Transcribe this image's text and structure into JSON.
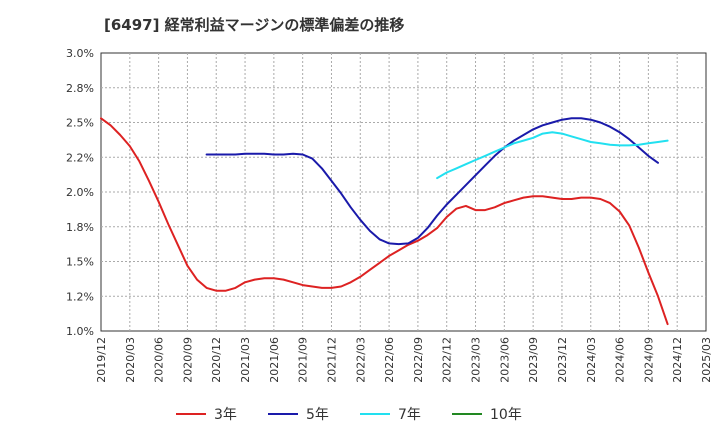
{
  "chart_data": {
    "type": "line",
    "title": "[6497]  経常利益マージンの標準偏差の推移",
    "xlabel": "",
    "ylabel": "",
    "x_ticks": [
      "2019/12",
      "2020/03",
      "2020/06",
      "2020/09",
      "2020/12",
      "2021/03",
      "2021/06",
      "2021/09",
      "2021/12",
      "2022/03",
      "2022/06",
      "2022/09",
      "2022/12",
      "2023/03",
      "2023/06",
      "2023/09",
      "2023/12",
      "2024/03",
      "2024/06",
      "2024/09",
      "2024/12",
      "2025/03"
    ],
    "y_ticks": [
      "3.0%",
      "2.8%",
      "2.5%",
      "2.2%",
      "2.0%",
      "1.8%",
      "1.5%",
      "1.2%",
      "1.0%"
    ],
    "ylim": [
      1.0,
      3.0
    ],
    "grid": true,
    "legend": "bottom",
    "series": [
      {
        "name": "3年",
        "color": "#dd2222",
        "points": [
          [
            "2019/12",
            2.53
          ],
          [
            "2020/01",
            2.48
          ],
          [
            "2020/02",
            2.41
          ],
          [
            "2020/03",
            2.33
          ],
          [
            "2020/04",
            2.22
          ],
          [
            "2020/05",
            2.08
          ],
          [
            "2020/06",
            1.93
          ],
          [
            "2020/07",
            1.77
          ],
          [
            "2020/08",
            1.62
          ],
          [
            "2020/09",
            1.47
          ],
          [
            "2020/10",
            1.37
          ],
          [
            "2020/11",
            1.31
          ],
          [
            "2020/12",
            1.29
          ],
          [
            "2021/01",
            1.29
          ],
          [
            "2021/02",
            1.31
          ],
          [
            "2021/03",
            1.35
          ],
          [
            "2021/04",
            1.37
          ],
          [
            "2021/05",
            1.38
          ],
          [
            "2021/06",
            1.38
          ],
          [
            "2021/07",
            1.37
          ],
          [
            "2021/08",
            1.35
          ],
          [
            "2021/09",
            1.33
          ],
          [
            "2021/10",
            1.32
          ],
          [
            "2021/11",
            1.31
          ],
          [
            "2021/12",
            1.31
          ],
          [
            "2022/01",
            1.32
          ],
          [
            "2022/02",
            1.35
          ],
          [
            "2022/03",
            1.39
          ],
          [
            "2022/04",
            1.44
          ],
          [
            "2022/05",
            1.49
          ],
          [
            "2022/06",
            1.54
          ],
          [
            "2022/07",
            1.58
          ],
          [
            "2022/08",
            1.62
          ],
          [
            "2022/09",
            1.65
          ],
          [
            "2022/10",
            1.69
          ],
          [
            "2022/11",
            1.74
          ],
          [
            "2022/12",
            1.82
          ],
          [
            "2023/01",
            1.88
          ],
          [
            "2023/02",
            1.9
          ],
          [
            "2023/03",
            1.87
          ],
          [
            "2023/04",
            1.87
          ],
          [
            "2023/05",
            1.89
          ],
          [
            "2023/06",
            1.92
          ],
          [
            "2023/07",
            1.94
          ],
          [
            "2023/08",
            1.96
          ],
          [
            "2023/09",
            1.97
          ],
          [
            "2023/10",
            1.97
          ],
          [
            "2023/11",
            1.96
          ],
          [
            "2023/12",
            1.95
          ],
          [
            "2024/01",
            1.95
          ],
          [
            "2024/02",
            1.96
          ],
          [
            "2024/03",
            1.96
          ],
          [
            "2024/04",
            1.95
          ],
          [
            "2024/05",
            1.92
          ],
          [
            "2024/06",
            1.86
          ],
          [
            "2024/07",
            1.76
          ],
          [
            "2024/08",
            1.6
          ],
          [
            "2024/09",
            1.42
          ],
          [
            "2024/10",
            1.25
          ],
          [
            "2024/11",
            1.05
          ]
        ]
      },
      {
        "name": "5年",
        "color": "#1a1aaa",
        "points": [
          [
            "2020/11",
            2.27
          ],
          [
            "2020/12",
            2.27
          ],
          [
            "2021/01",
            2.27
          ],
          [
            "2021/02",
            2.27
          ],
          [
            "2021/03",
            2.275
          ],
          [
            "2021/04",
            2.275
          ],
          [
            "2021/05",
            2.275
          ],
          [
            "2021/06",
            2.27
          ],
          [
            "2021/07",
            2.27
          ],
          [
            "2021/08",
            2.275
          ],
          [
            "2021/09",
            2.27
          ],
          [
            "2021/10",
            2.24
          ],
          [
            "2021/11",
            2.17
          ],
          [
            "2021/12",
            2.08
          ],
          [
            "2022/01",
            1.99
          ],
          [
            "2022/02",
            1.89
          ],
          [
            "2022/03",
            1.8
          ],
          [
            "2022/04",
            1.72
          ],
          [
            "2022/05",
            1.66
          ],
          [
            "2022/06",
            1.63
          ],
          [
            "2022/07",
            1.625
          ],
          [
            "2022/08",
            1.63
          ],
          [
            "2022/09",
            1.67
          ],
          [
            "2022/10",
            1.74
          ],
          [
            "2022/11",
            1.83
          ],
          [
            "2022/12",
            1.91
          ],
          [
            "2023/01",
            1.98
          ],
          [
            "2023/02",
            2.05
          ],
          [
            "2023/03",
            2.12
          ],
          [
            "2023/04",
            2.19
          ],
          [
            "2023/05",
            2.26
          ],
          [
            "2023/06",
            2.32
          ],
          [
            "2023/07",
            2.37
          ],
          [
            "2023/08",
            2.41
          ],
          [
            "2023/09",
            2.45
          ],
          [
            "2023/10",
            2.48
          ],
          [
            "2023/11",
            2.5
          ],
          [
            "2023/12",
            2.52
          ],
          [
            "2024/01",
            2.53
          ],
          [
            "2024/02",
            2.53
          ],
          [
            "2024/03",
            2.52
          ],
          [
            "2024/04",
            2.5
          ],
          [
            "2024/05",
            2.47
          ],
          [
            "2024/06",
            2.43
          ],
          [
            "2024/07",
            2.38
          ],
          [
            "2024/08",
            2.32
          ],
          [
            "2024/09",
            2.26
          ],
          [
            "2024/10",
            2.21
          ]
        ]
      },
      {
        "name": "7年",
        "color": "#22e0f0",
        "points": [
          [
            "2022/11",
            2.1
          ],
          [
            "2022/12",
            2.14
          ],
          [
            "2023/01",
            2.17
          ],
          [
            "2023/02",
            2.2
          ],
          [
            "2023/03",
            2.23
          ],
          [
            "2023/04",
            2.26
          ],
          [
            "2023/05",
            2.29
          ],
          [
            "2023/06",
            2.32
          ],
          [
            "2023/07",
            2.35
          ],
          [
            "2023/08",
            2.37
          ],
          [
            "2023/09",
            2.39
          ],
          [
            "2023/10",
            2.42
          ],
          [
            "2023/11",
            2.43
          ],
          [
            "2023/12",
            2.42
          ],
          [
            "2024/01",
            2.4
          ],
          [
            "2024/02",
            2.38
          ],
          [
            "2024/03",
            2.36
          ],
          [
            "2024/04",
            2.35
          ],
          [
            "2024/05",
            2.34
          ],
          [
            "2024/06",
            2.335
          ],
          [
            "2024/07",
            2.335
          ],
          [
            "2024/08",
            2.34
          ],
          [
            "2024/09",
            2.35
          ],
          [
            "2024/10",
            2.36
          ],
          [
            "2024/11",
            2.37
          ]
        ]
      },
      {
        "name": "10年",
        "color": "#228822",
        "points": []
      }
    ]
  }
}
